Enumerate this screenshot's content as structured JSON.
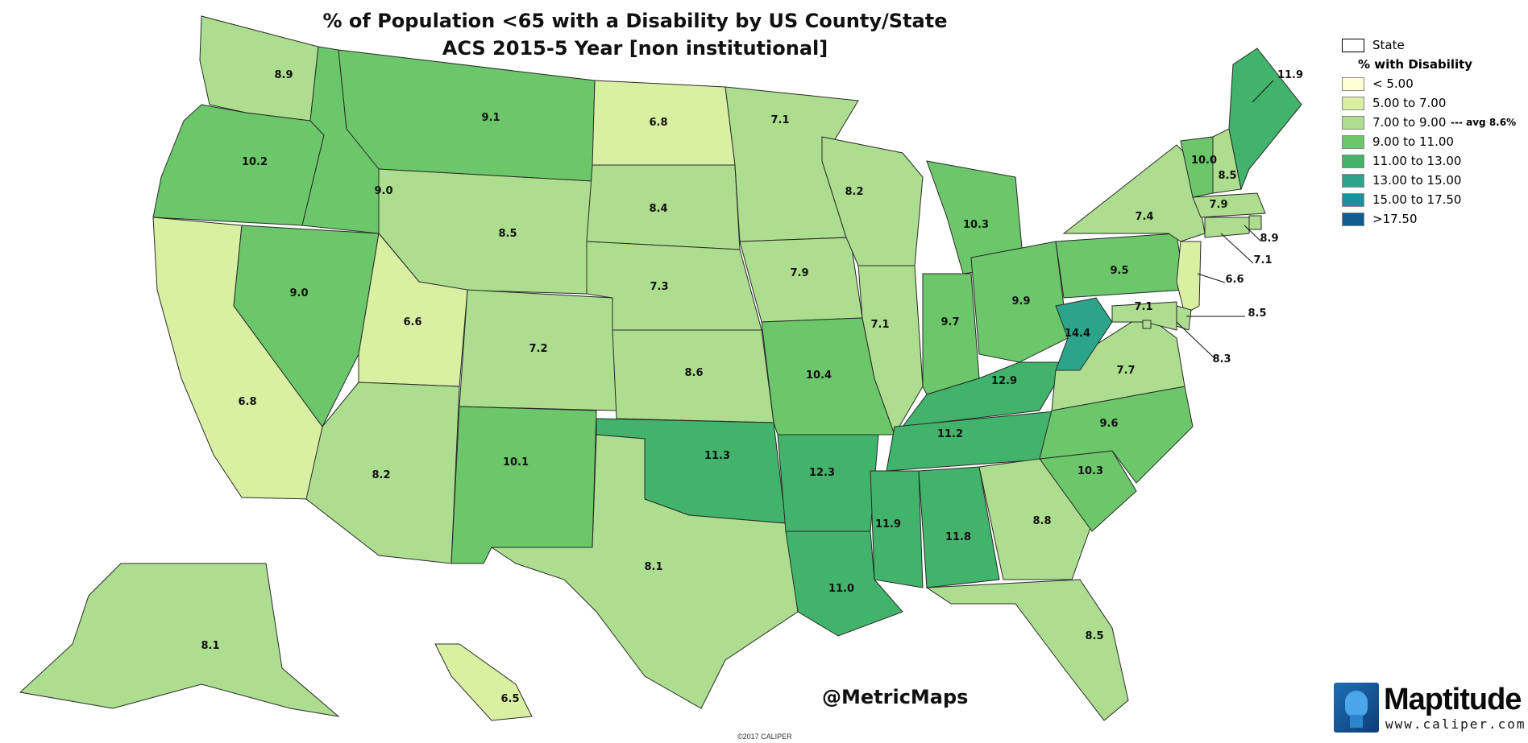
{
  "title_line1": "% of Population <65 with a Disability by US County/State",
  "title_line2": "ACS 2015-5 Year [non institutional]",
  "legend": {
    "state_label": "State",
    "header": "% with Disability",
    "items": [
      {
        "label": "< 5.00",
        "color": "#ffffd6"
      },
      {
        "label": "5.00 to 7.00",
        "color": "#d9f0a3"
      },
      {
        "label": "7.00 to 9.00",
        "color": "#addd8e"
      },
      {
        "label": "9.00 to 11.00",
        "color": "#6cc66a"
      },
      {
        "label": "11.00 to 13.00",
        "color": "#41b36a"
      },
      {
        "label": "13.00 to 15.00",
        "color": "#2ca48a"
      },
      {
        "label": "15.00 to 17.50",
        "color": "#1e8fa0"
      },
      {
        "label": ">17.50",
        "color": "#0f5c91"
      }
    ],
    "avg_note": "avg 8.6%"
  },
  "state_labels": [
    {
      "state": "Washington",
      "value": "8.9"
    },
    {
      "state": "Oregon",
      "value": "10.2"
    },
    {
      "state": "California",
      "value": "6.8"
    },
    {
      "state": "Idaho",
      "value": "9.0"
    },
    {
      "state": "Nevada",
      "value": "9.0"
    },
    {
      "state": "Montana",
      "value": "9.1"
    },
    {
      "state": "Wyoming",
      "value": "8.5"
    },
    {
      "state": "Utah",
      "value": "6.6"
    },
    {
      "state": "Arizona",
      "value": "8.2"
    },
    {
      "state": "Colorado",
      "value": "7.2"
    },
    {
      "state": "New Mexico",
      "value": "10.1"
    },
    {
      "state": "North Dakota",
      "value": "6.8"
    },
    {
      "state": "South Dakota",
      "value": "8.4"
    },
    {
      "state": "Nebraska",
      "value": "7.3"
    },
    {
      "state": "Kansas",
      "value": "8.6"
    },
    {
      "state": "Oklahoma",
      "value": "11.3"
    },
    {
      "state": "Texas",
      "value": "8.1"
    },
    {
      "state": "Minnesota",
      "value": "7.1"
    },
    {
      "state": "Iowa",
      "value": "7.9"
    },
    {
      "state": "Missouri",
      "value": "10.4"
    },
    {
      "state": "Arkansas",
      "value": "12.3"
    },
    {
      "state": "Louisiana",
      "value": "11.0"
    },
    {
      "state": "Wisconsin",
      "value": "8.2"
    },
    {
      "state": "Illinois",
      "value": "7.1"
    },
    {
      "state": "Michigan",
      "value": "10.3"
    },
    {
      "state": "Indiana",
      "value": "9.7"
    },
    {
      "state": "Ohio",
      "value": "9.9"
    },
    {
      "state": "Kentucky",
      "value": "12.9"
    },
    {
      "state": "Tennessee",
      "value": "11.2"
    },
    {
      "state": "Mississippi",
      "value": "11.9"
    },
    {
      "state": "Alabama",
      "value": "11.8"
    },
    {
      "state": "Georgia",
      "value": "8.8"
    },
    {
      "state": "Florida",
      "value": "8.5"
    },
    {
      "state": "South Carolina",
      "value": "10.3"
    },
    {
      "state": "North Carolina",
      "value": "9.6"
    },
    {
      "state": "Virginia",
      "value": "7.7"
    },
    {
      "state": "West Virginia",
      "value": "14.4"
    },
    {
      "state": "Pennsylvania",
      "value": "9.5"
    },
    {
      "state": "New York",
      "value": "7.4"
    },
    {
      "state": "Vermont",
      "value": "10.0"
    },
    {
      "state": "New Hampshire",
      "value": "8.5"
    },
    {
      "state": "Maine",
      "value": "11.9"
    },
    {
      "state": "Massachusetts",
      "value": "7.9"
    },
    {
      "state": "Rhode Island",
      "value": "8.9"
    },
    {
      "state": "Connecticut",
      "value": "7.1"
    },
    {
      "state": "New Jersey",
      "value": "6.6"
    },
    {
      "state": "Delaware",
      "value": "8.5"
    },
    {
      "state": "Maryland",
      "value": "8.3"
    },
    {
      "state": "District of Columbia",
      "value": "7.1"
    },
    {
      "state": "Alaska",
      "value": "8.1"
    },
    {
      "state": "Hawaii",
      "value": "6.5"
    }
  ],
  "handle": "@MetricMaps",
  "copyright": "©2017 CALIPER",
  "logo": {
    "name": "Maptitude",
    "url": "www.caliper.com"
  }
}
